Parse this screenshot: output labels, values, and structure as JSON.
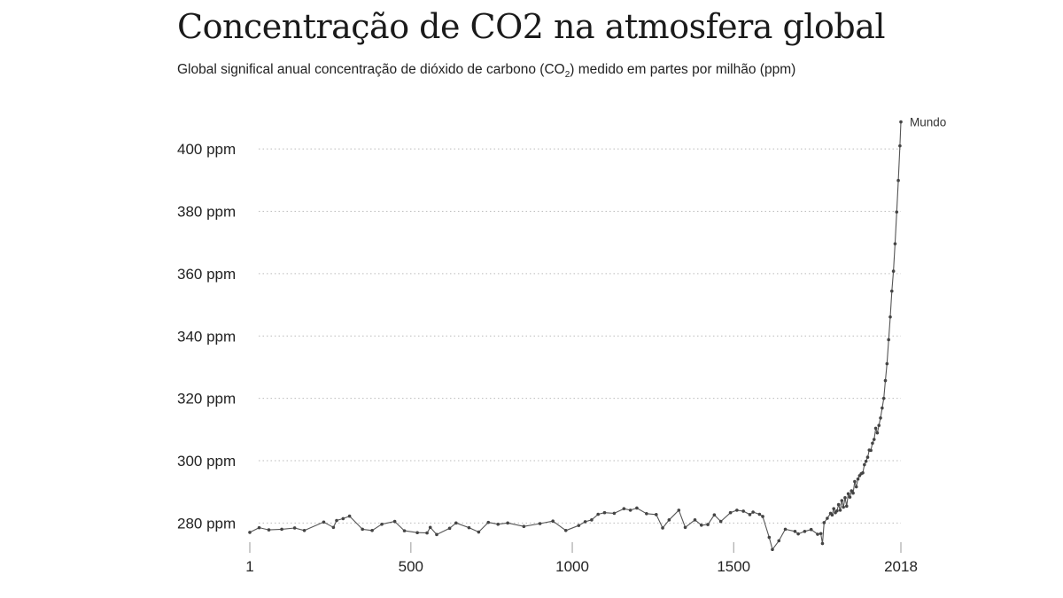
{
  "title": "Concentração de CO2 na atmosfera global",
  "subtitle": {
    "before": "Global significal anual concentração de dióxido de carbono (CO",
    "sub": "2",
    "after": ") medido em partes por milhão (ppm)"
  },
  "chart_data": {
    "type": "line",
    "title": "Concentração de CO2 na atmosfera global",
    "xlabel": "",
    "ylabel": "",
    "xlim": [
      1,
      2018
    ],
    "ylim": [
      271,
      410
    ],
    "grid": true,
    "colors": {
      "line": "#555555",
      "point": "#444444",
      "grid": "#bbbbbb"
    },
    "y_ticks": [
      {
        "value": 280,
        "label": "280 ppm"
      },
      {
        "value": 300,
        "label": "300 ppm"
      },
      {
        "value": 320,
        "label": "320 ppm"
      },
      {
        "value": 340,
        "label": "340 ppm"
      },
      {
        "value": 360,
        "label": "360 ppm"
      },
      {
        "value": 380,
        "label": "380 ppm"
      },
      {
        "value": 400,
        "label": "400 ppm"
      }
    ],
    "x_ticks": [
      {
        "value": 1,
        "label": "1"
      },
      {
        "value": 500,
        "label": "500"
      },
      {
        "value": 1000,
        "label": "1000"
      },
      {
        "value": 1500,
        "label": "1500"
      },
      {
        "value": 2018,
        "label": "2018"
      }
    ],
    "series": [
      {
        "name": "Mundo",
        "x": [
          1,
          30,
          60,
          100,
          140,
          170,
          230,
          260,
          270,
          290,
          310,
          350,
          380,
          410,
          450,
          480,
          520,
          550,
          560,
          580,
          620,
          640,
          680,
          710,
          740,
          770,
          800,
          850,
          900,
          940,
          980,
          1020,
          1040,
          1060,
          1080,
          1100,
          1130,
          1160,
          1180,
          1200,
          1230,
          1260,
          1280,
          1300,
          1330,
          1350,
          1380,
          1400,
          1420,
          1440,
          1460,
          1490,
          1510,
          1530,
          1550,
          1560,
          1580,
          1590,
          1610,
          1620,
          1640,
          1660,
          1690,
          1700,
          1720,
          1740,
          1760,
          1770,
          1775,
          1780,
          1790,
          1800,
          1805,
          1810,
          1815,
          1820,
          1825,
          1830,
          1835,
          1840,
          1845,
          1850,
          1855,
          1860,
          1865,
          1870,
          1875,
          1880,
          1885,
          1890,
          1895,
          1900,
          1905,
          1910,
          1915,
          1920,
          1925,
          1930,
          1935,
          1940,
          1945,
          1950,
          1955,
          1960,
          1965,
          1970,
          1975,
          1980,
          1985,
          1990,
          1995,
          2000,
          2005,
          2010,
          2015,
          2018
        ],
        "y": [
          277,
          278.5,
          277.8,
          278,
          278.4,
          277.6,
          280.3,
          278.6,
          280.8,
          281.4,
          282.2,
          278,
          277.6,
          279.6,
          280.5,
          277.5,
          276.9,
          276.8,
          278.6,
          276.3,
          278.3,
          280,
          278.5,
          277.1,
          280.2,
          279.6,
          280,
          278.9,
          279.8,
          280.6,
          277.6,
          279.2,
          280.4,
          281,
          282.8,
          283.3,
          283.1,
          284.6,
          284.1,
          284.8,
          283,
          282.7,
          278.4,
          281,
          284.1,
          278.6,
          281,
          279.3,
          279.5,
          282.6,
          280.5,
          283.3,
          284.1,
          283.8,
          282.7,
          283.5,
          282.8,
          282.1,
          275.4,
          271.5,
          274.3,
          278,
          277.3,
          276.5,
          277.3,
          277.9,
          276.4,
          276.6,
          273.4,
          280.1,
          281.5,
          283.1,
          282.6,
          284.6,
          283.3,
          283.9,
          285.9,
          284.1,
          287.2,
          285.1,
          288.1,
          285.4,
          289.4,
          288.3,
          290.3,
          289.6,
          293.3,
          291.6,
          294.1,
          295.2,
          295.8,
          296.1,
          298.7,
          299.8,
          301.1,
          303.4,
          303.3,
          305.6,
          306.8,
          310.4,
          308.9,
          311.3,
          313.7,
          316.9,
          320,
          325.7,
          331.1,
          338.8,
          346.1,
          354.4,
          360.8,
          369.6,
          379.8,
          389.9,
          401,
          408.7
        ]
      }
    ]
  }
}
